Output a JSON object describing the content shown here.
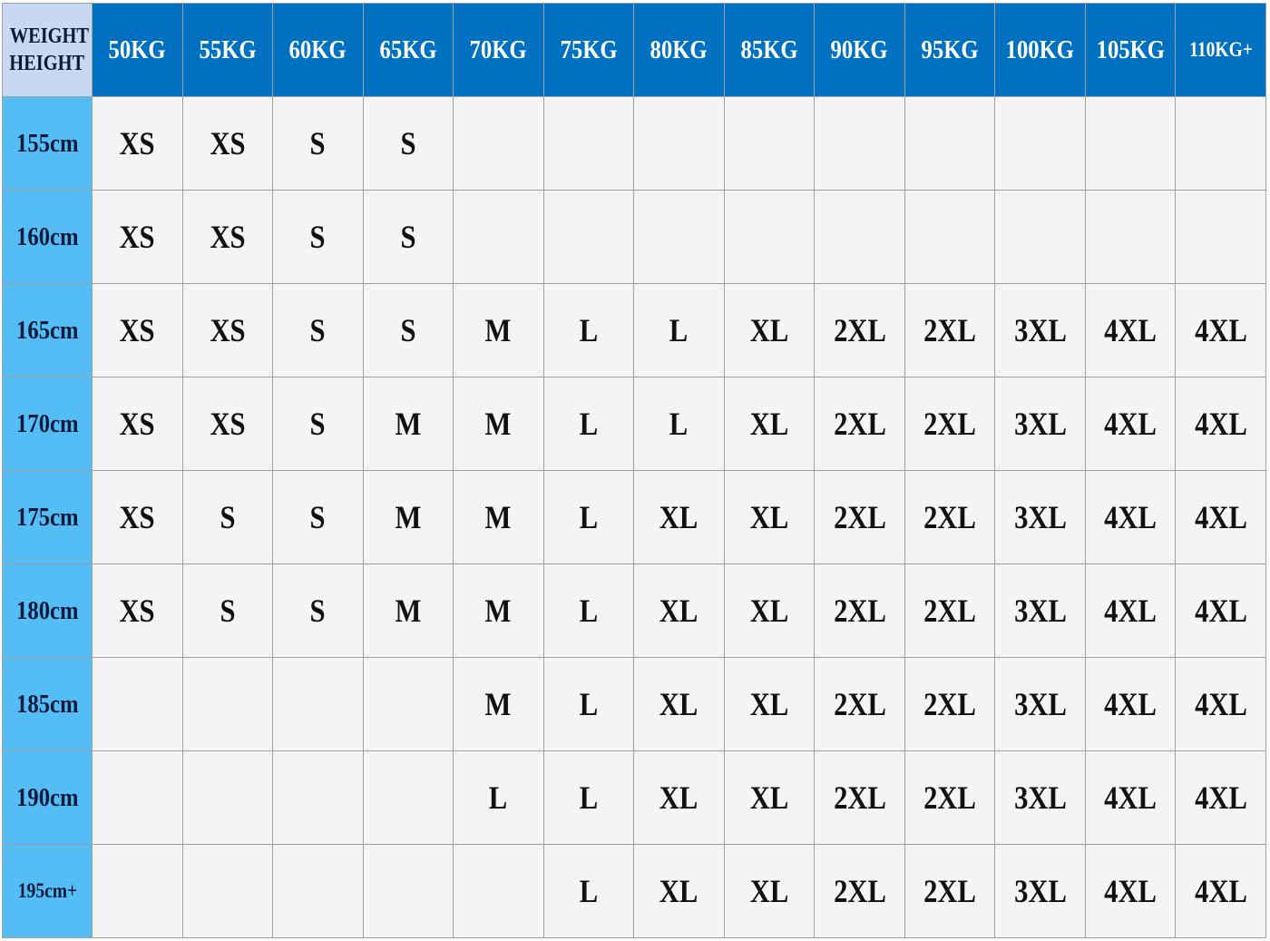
{
  "table": {
    "corner": [
      "WEIGHT",
      "HEIGHT"
    ],
    "columns": [
      "50KG",
      "55KG",
      "60KG",
      "65KG",
      "70KG",
      "75KG",
      "80KG",
      "85KG",
      "90KG",
      "95KG",
      "100KG",
      "105KG",
      "110KG+"
    ],
    "rows": [
      {
        "label": "155cm",
        "sizes": [
          "XS",
          "XS",
          "S",
          "S",
          null,
          null,
          null,
          null,
          null,
          null,
          null,
          null,
          null
        ]
      },
      {
        "label": "160cm",
        "sizes": [
          "XS",
          "XS",
          "S",
          "S",
          null,
          null,
          null,
          null,
          null,
          null,
          null,
          null,
          null
        ]
      },
      {
        "label": "165cm",
        "sizes": [
          "XS",
          "XS",
          "S",
          "S",
          "M",
          "L",
          "L",
          "XL",
          "2XL",
          "2XL",
          "3XL",
          "4XL",
          "4XL"
        ]
      },
      {
        "label": "170cm",
        "sizes": [
          "XS",
          "XS",
          "S",
          "M",
          "M",
          "L",
          "L",
          "XL",
          "2XL",
          "2XL",
          "3XL",
          "4XL",
          "4XL"
        ]
      },
      {
        "label": "175cm",
        "sizes": [
          "XS",
          "S",
          "S",
          "M",
          "M",
          "L",
          "XL",
          "XL",
          "2XL",
          "2XL",
          "3XL",
          "4XL",
          "4XL"
        ]
      },
      {
        "label": "180cm",
        "sizes": [
          "XS",
          "S",
          "S",
          "M",
          "M",
          "L",
          "XL",
          "XL",
          "2XL",
          "2XL",
          "3XL",
          "4XL",
          "4XL"
        ]
      },
      {
        "label": "185cm",
        "sizes": [
          null,
          null,
          null,
          null,
          "M",
          "L",
          "XL",
          "XL",
          "2XL",
          "2XL",
          "3XL",
          "4XL",
          "4XL"
        ]
      },
      {
        "label": "190cm",
        "sizes": [
          null,
          null,
          null,
          null,
          "L",
          "L",
          "XL",
          "XL",
          "2XL",
          "2XL",
          "3XL",
          "4XL",
          "4XL"
        ]
      },
      {
        "label": "195cm+",
        "sizes": [
          null,
          null,
          null,
          null,
          null,
          "L",
          "XL",
          "XL",
          "2XL",
          "2XL",
          "3XL",
          "4XL",
          "4XL"
        ]
      }
    ]
  }
}
